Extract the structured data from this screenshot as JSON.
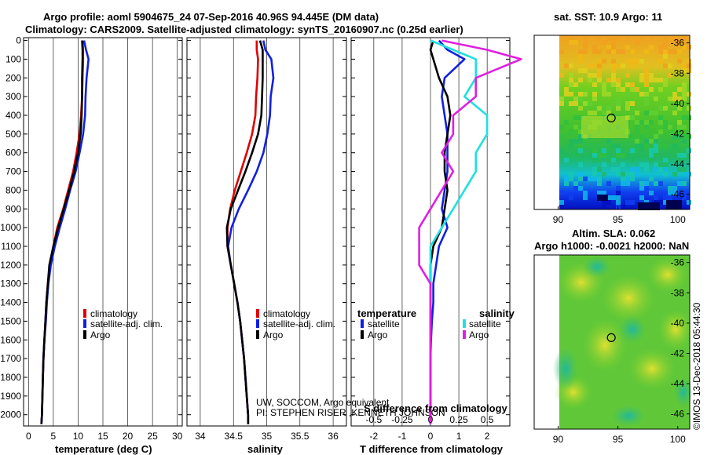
{
  "title_line1": "Argo profile: aoml 5904675_24 07-Sep-2016 40.96S 94.445E (DM data)",
  "title_line2": "Climatology: CARS2009. Satellite-adjusted climatology: synTS_20160907.nc (0.25d earlier)",
  "colors": {
    "clim": "#e00000",
    "sat": "#1020e0",
    "argo": "#000000",
    "sal_diff": "#e020e0",
    "sal_sat": "#20e0e0"
  },
  "depth_ticks": [
    0,
    100,
    200,
    300,
    400,
    500,
    600,
    700,
    800,
    900,
    1000,
    1100,
    1200,
    1300,
    1400,
    1500,
    1600,
    1700,
    1800,
    1900,
    2000
  ],
  "chart_data": [
    {
      "type": "line",
      "name": "temperature",
      "xlabel": "temperature (deg C)",
      "ylabel": "depth",
      "xlim": [
        -1,
        31
      ],
      "ylim": [
        2060,
        -15
      ],
      "xticks": [
        0,
        5,
        10,
        15,
        20,
        25,
        30
      ],
      "xtick_labels": [
        "0",
        "5",
        "10",
        "15",
        "20",
        "25",
        "30"
      ],
      "legend": [
        "climatology",
        "satellite-adj. clim.",
        "Argo"
      ],
      "depth": [
        0,
        50,
        100,
        200,
        300,
        400,
        500,
        600,
        700,
        800,
        900,
        1000,
        1100,
        1200,
        1300,
        1400,
        1500,
        1600,
        1700,
        1800,
        1900,
        2000,
        2050
      ],
      "series": [
        {
          "name": "climatology",
          "values": [
            10.9,
            11.0,
            11.0,
            10.9,
            10.8,
            10.6,
            10.3,
            9.7,
            9.0,
            8.0,
            7.0,
            5.8,
            5.0,
            4.3,
            3.9,
            3.6,
            3.4,
            3.2,
            3.0,
            2.9,
            2.8,
            2.7,
            2.6
          ]
        },
        {
          "name": "satellite-adj. clim.",
          "values": [
            11.2,
            11.6,
            12.1,
            11.7,
            11.5,
            11.4,
            11.0,
            10.3,
            9.5,
            8.4,
            7.4,
            6.3,
            5.3,
            4.5,
            4.0,
            3.7,
            3.5,
            3.2,
            3.0,
            2.9,
            2.8,
            2.7,
            2.6
          ]
        },
        {
          "name": "Argo",
          "values": [
            10.8,
            10.9,
            10.9,
            10.8,
            10.8,
            10.7,
            10.5,
            10.0,
            9.2,
            8.2,
            7.1,
            6.0,
            5.0,
            4.2,
            3.9,
            3.6,
            3.4,
            3.2,
            3.0,
            2.9,
            2.8,
            2.7,
            2.6
          ]
        }
      ]
    },
    {
      "type": "line",
      "name": "salinity",
      "xlabel": "salinity",
      "xlim": [
        33.8,
        36.2
      ],
      "ylim": [
        2060,
        -15
      ],
      "xticks": [
        34,
        34.5,
        35,
        35.5,
        36
      ],
      "xtick_labels": [
        "34",
        "34.5",
        "35",
        "35.5",
        "36"
      ],
      "legend": [
        "climatology",
        "satellite-adj. clim.",
        "Argo"
      ],
      "annotation_line1": "UW, SOCCOM, Argo equivalent",
      "annotation_line2": "PI: STEPHEN RISER ,KENNETH JOHNSON",
      "depth": [
        0,
        50,
        100,
        200,
        300,
        400,
        500,
        600,
        700,
        800,
        900,
        1000,
        1100,
        1200,
        1300,
        1400,
        1500,
        1600,
        1700,
        1800,
        1900,
        2000,
        2050
      ],
      "series": [
        {
          "name": "climatology",
          "values": [
            34.85,
            34.85,
            34.87,
            34.86,
            34.84,
            34.83,
            34.78,
            34.7,
            34.61,
            34.52,
            34.45,
            34.41,
            34.41,
            34.46,
            34.51,
            34.56,
            34.6,
            34.63,
            34.66,
            34.68,
            34.7,
            34.72,
            34.72
          ]
        },
        {
          "name": "satellite-adj. clim.",
          "values": [
            34.95,
            34.98,
            35.07,
            35.1,
            35.06,
            35.05,
            35.01,
            34.95,
            34.85,
            34.72,
            34.58,
            34.47,
            34.42,
            34.46,
            34.51,
            34.56,
            34.6,
            34.63,
            34.66,
            34.68,
            34.7,
            34.72,
            34.72
          ]
        },
        {
          "name": "Argo",
          "values": [
            34.9,
            34.94,
            34.94,
            34.94,
            34.93,
            34.92,
            34.87,
            34.78,
            34.68,
            34.57,
            34.46,
            34.4,
            34.41,
            34.46,
            34.51,
            34.56,
            34.6,
            34.63,
            34.66,
            34.68,
            34.7,
            34.72,
            34.72
          ]
        }
      ]
    },
    {
      "type": "line",
      "name": "differences",
      "xlabel": "T difference from climatology",
      "xlabel_top": "S difference from climatology",
      "xlim": [
        -2.8,
        2.8
      ],
      "ylim": [
        2060,
        -15
      ],
      "xticks": [
        -2,
        -1,
        0,
        1,
        2
      ],
      "xtick_labels": [
        "-2",
        "-1",
        "0",
        "1",
        "2"
      ],
      "s_ticks": [
        -0.5,
        -0.25,
        0,
        0.25,
        0.5
      ],
      "s_tick_labels": [
        "-0.5",
        "-0.25",
        "0",
        "0.25",
        "0.5"
      ],
      "legend_temperature_title": "temperature",
      "legend_salinity_title": "salinity",
      "legend": [
        "satellite",
        "Argo",
        "satellite",
        "Argo"
      ],
      "depth": [
        0,
        50,
        100,
        200,
        300,
        400,
        500,
        600,
        700,
        800,
        900,
        1000,
        1100,
        1200,
        1300,
        1400,
        1500,
        1600,
        1700,
        1800,
        1900,
        2000,
        2050
      ],
      "series": [
        {
          "name": "T satellite",
          "values": [
            0.3,
            0.6,
            1.2,
            0.5,
            0.4,
            0.5,
            0.6,
            0.6,
            0.6,
            0.5,
            0.4,
            0.6,
            0.3,
            0.2,
            0.1,
            0.1,
            0.05,
            0.02,
            0.0,
            0.0,
            0.0,
            0.0,
            0.0
          ]
        },
        {
          "name": "T Argo",
          "values": [
            0.1,
            0.0,
            0.1,
            0.3,
            0.6,
            0.7,
            0.6,
            0.5,
            0.5,
            0.6,
            0.5,
            0.4,
            0.1,
            0.0,
            0.0,
            0.0,
            0.0,
            0.0,
            0.0,
            0.0,
            0.0,
            0.0,
            0.0
          ]
        },
        {
          "name": "S satellite",
          "values": [
            0.0,
            0.2,
            0.4,
            0.4,
            0.3,
            0.5,
            0.5,
            0.4,
            0.4,
            0.3,
            0.2,
            0.1,
            0.0,
            0.0,
            0.0,
            0.0,
            0.0,
            0.0,
            0.0,
            0.0,
            0.0,
            0.0,
            0.0
          ]
        },
        {
          "name": "S Argo",
          "values": [
            0.1,
            0.5,
            0.8,
            0.4,
            0.4,
            0.2,
            0.2,
            0.1,
            0.2,
            0.1,
            0.0,
            -0.1,
            -0.1,
            -0.1,
            0.0,
            0.0,
            0.0,
            0.0,
            0.0,
            0.0,
            0.0,
            0.0,
            0.0
          ]
        }
      ]
    },
    {
      "type": "heatmap",
      "name": "sst-map",
      "title": "sat. SST: 10.9 Argo: 11",
      "xlim": [
        88,
        101
      ],
      "ylim": [
        -47,
        -35.5
      ],
      "xticks": [
        90,
        95,
        100
      ],
      "xtick_labels": [
        "90",
        "95",
        "100"
      ],
      "yticks": [
        -36,
        -38,
        -40,
        -42,
        -44,
        -46
      ],
      "ytick_labels": [
        "-36",
        "-38",
        "-40",
        "-42",
        "-44",
        "-46"
      ],
      "marker": [
        94.445,
        -40.96
      ]
    },
    {
      "type": "heatmap",
      "name": "sla-map",
      "title_line1": "Altim. SLA: 0.062",
      "title_line2": "Argo h1000: -0.0021 h2000: NaN",
      "xlim": [
        88,
        101
      ],
      "ylim": [
        -47,
        -35.5
      ],
      "xticks": [
        90,
        95,
        100
      ],
      "xtick_labels": [
        "90",
        "95",
        "100"
      ],
      "yticks": [
        -36,
        -38,
        -40,
        -42,
        -44,
        -46
      ],
      "ytick_labels": [
        "-36",
        "-38",
        "-40",
        "-42",
        "-44",
        "-46"
      ],
      "marker": [
        94.445,
        -40.96
      ]
    }
  ],
  "credit": "©IMOS 13-Dec-2018 05:44:30"
}
